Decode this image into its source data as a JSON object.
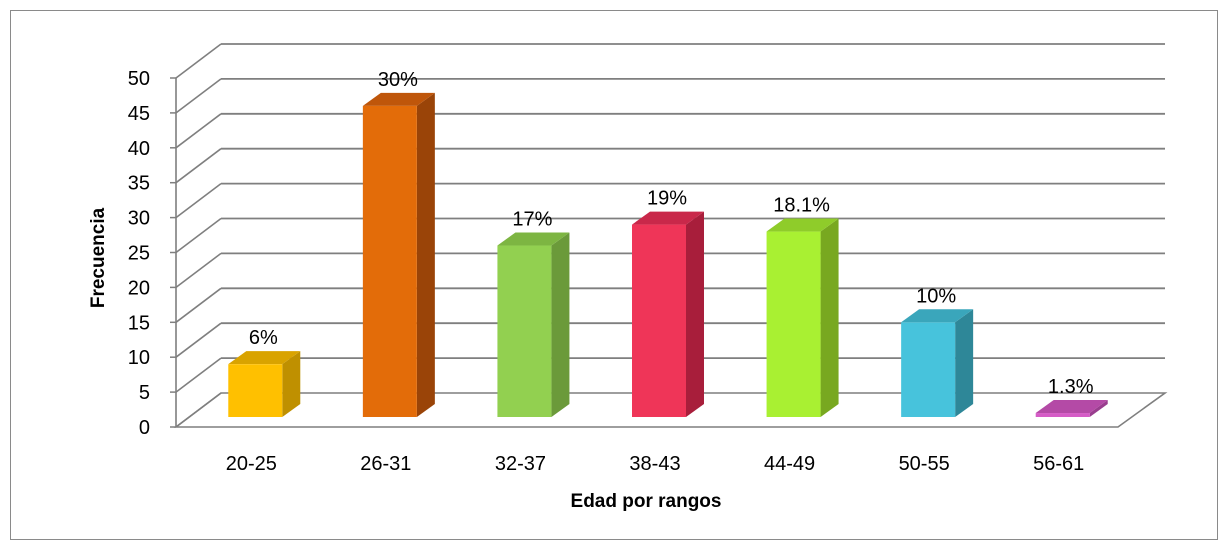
{
  "chart_data": {
    "type": "bar",
    "style": "3d-column",
    "categories": [
      "20-25",
      "26-31",
      "32-37",
      "38-43",
      "44-49",
      "50-55",
      "56-61"
    ],
    "values": [
      9,
      46,
      26,
      29,
      28,
      15,
      2
    ],
    "data_labels": [
      "6%",
      "30%",
      "17%",
      "19%",
      "18.1%",
      "10%",
      "1.3%"
    ],
    "colors": [
      "#FFC000",
      "#E36C09",
      "#92D050",
      "#EF3558",
      "#A9F032",
      "#47C3DC",
      "#D55CC6"
    ],
    "side_colors": [
      "#BF9000",
      "#9A4408",
      "#6B9A3A",
      "#A81E3B",
      "#78A820",
      "#2E8798",
      "#993D8E"
    ],
    "top_colors": [
      "#D9A300",
      "#BF560A",
      "#7DB542",
      "#C9284A",
      "#8FCC2A",
      "#3AA6BB",
      "#B44AA6"
    ],
    "xlabel": "Edad por rangos",
    "ylabel": "Frecuencia",
    "ylim": [
      0,
      50
    ],
    "yticks": [
      0,
      5,
      10,
      15,
      20,
      25,
      30,
      35,
      40,
      45,
      50
    ],
    "grid": true,
    "legend": "none"
  }
}
